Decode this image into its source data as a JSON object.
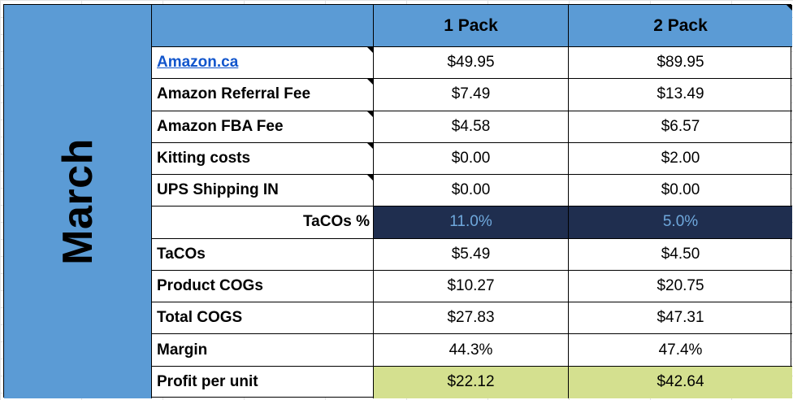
{
  "month": "March",
  "columns": [
    "1 Pack",
    "2 Pack"
  ],
  "rows": [
    {
      "label": "Amazon.ca",
      "values": [
        "$49.95",
        "$89.95"
      ]
    },
    {
      "label": "Amazon Referral Fee",
      "values": [
        "$7.49",
        "$13.49"
      ]
    },
    {
      "label": "Amazon FBA Fee",
      "values": [
        "$4.58",
        "$6.57"
      ]
    },
    {
      "label": "Kitting costs",
      "values": [
        "$0.00",
        "$2.00"
      ]
    },
    {
      "label": "UPS Shipping IN",
      "values": [
        "$0.00",
        "$0.00"
      ]
    },
    {
      "label": "TaCOs %",
      "values": [
        "11.0%",
        "5.0%"
      ]
    },
    {
      "label": "TaCOs",
      "values": [
        "$5.49",
        "$4.50"
      ]
    },
    {
      "label": "Product COGs",
      "values": [
        "$10.27",
        "$20.75"
      ]
    },
    {
      "label": "Total COGS",
      "values": [
        "$27.83",
        "$47.31"
      ]
    },
    {
      "label": "Margin",
      "values": [
        "44.3%",
        "47.4%"
      ]
    },
    {
      "label": "Profit per unit",
      "values": [
        "$22.12",
        "$42.64"
      ]
    }
  ],
  "colors": {
    "header_blue": "#5b9bd5",
    "tacos_dark": "#1f2e4f",
    "tacos_text": "#6fa8dc",
    "profit_green": "#d4e08f",
    "link": "#1155cc"
  }
}
